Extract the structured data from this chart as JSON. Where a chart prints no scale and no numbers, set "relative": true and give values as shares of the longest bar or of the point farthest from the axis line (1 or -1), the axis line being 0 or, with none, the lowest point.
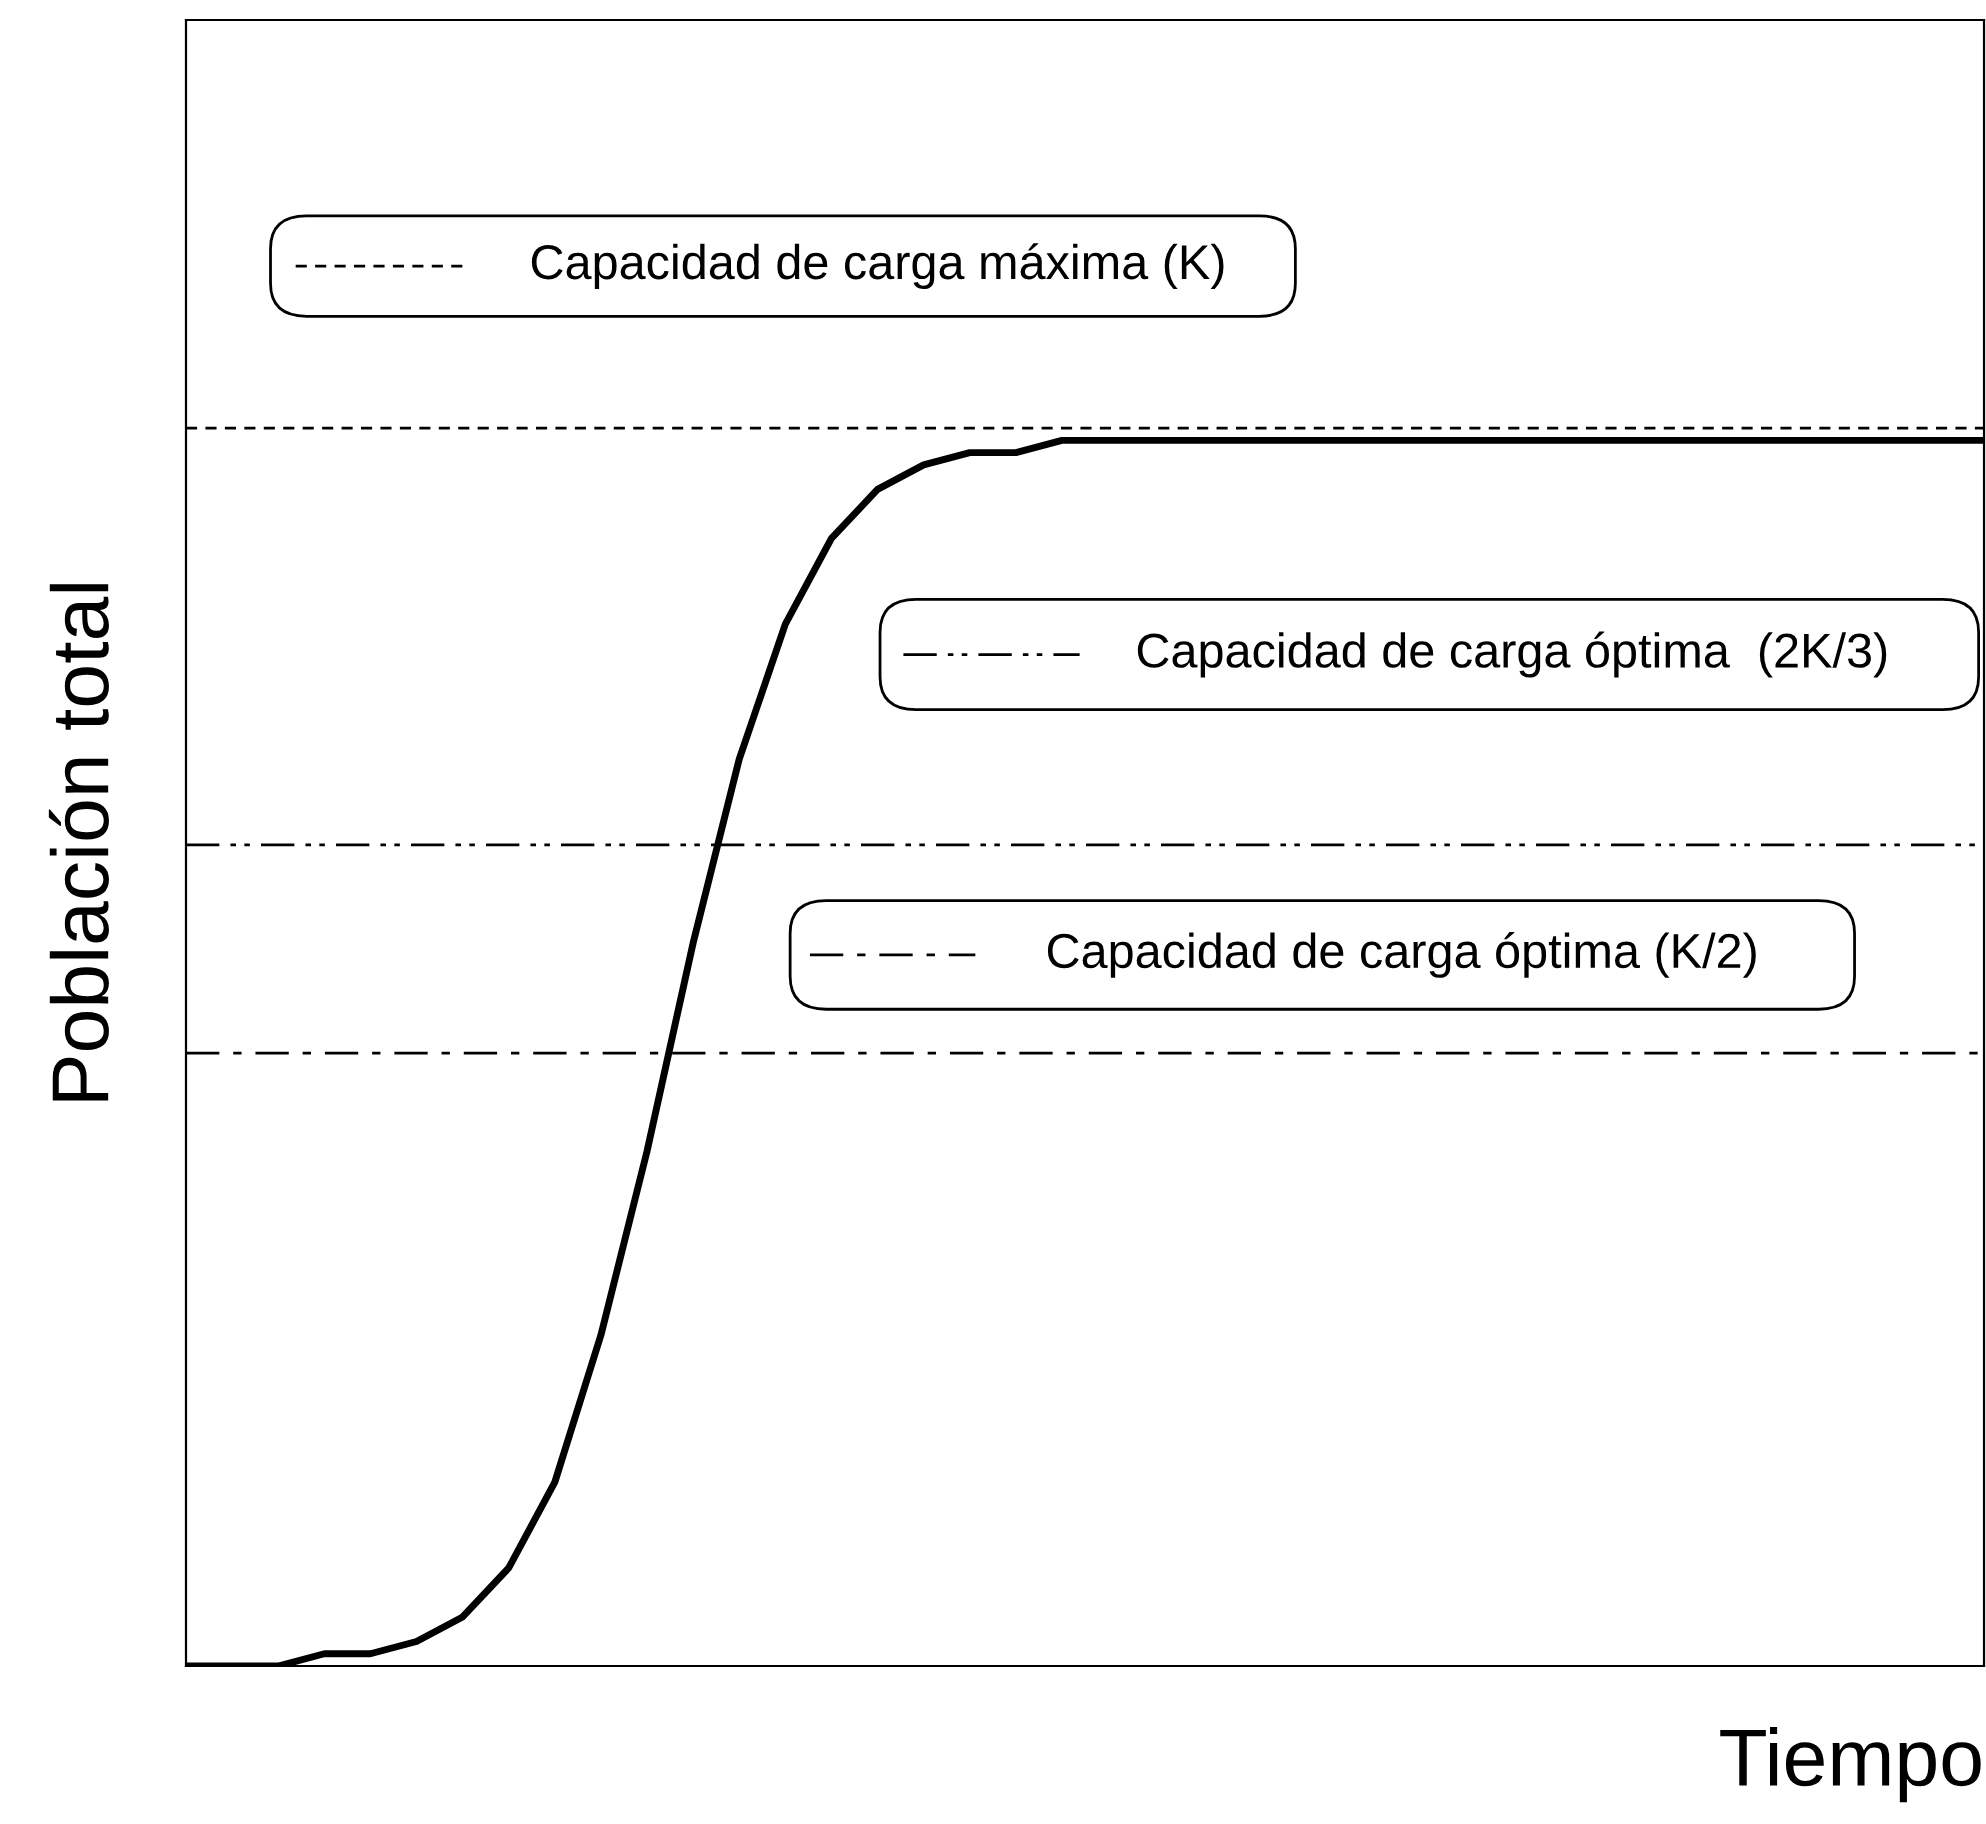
{
  "chart_data": {
    "type": "line",
    "relative": true,
    "xlabel": "Tiempo",
    "ylabel": "Población total",
    "legend": "top",
    "categories": [
      null,
      null,
      null,
      null,
      null,
      null,
      null,
      null,
      null,
      null,
      null,
      null,
      null,
      null,
      null,
      null,
      null,
      null,
      null,
      null,
      null,
      null,
      null,
      null,
      null,
      null,
      null,
      null,
      null,
      null,
      null,
      null,
      null,
      null,
      null,
      null,
      null,
      null,
      null,
      null
    ],
    "series": [
      {
        "color": "#000000",
        "line_style": "solid",
        "values": [
          0.0,
          0.0,
          0.0,
          0.01,
          0.01,
          0.02,
          0.04,
          0.08,
          0.15,
          0.27,
          0.42,
          0.59,
          0.74,
          0.85,
          0.92,
          0.96,
          0.98,
          0.99,
          0.99,
          1.0,
          1.0,
          1.0,
          1.0,
          1.0,
          1.0,
          1.0,
          1.0,
          1.0,
          1.0,
          1.0,
          1.0,
          1.0,
          1.0,
          1.0,
          1.0,
          1.0,
          1.0,
          1.0,
          1.0,
          1.0
        ]
      }
    ],
    "ref_lines": [
      {
        "axis": "y",
        "value": 1.01,
        "label": "Capacidad de carga máxima (K)",
        "color": "#000000",
        "line_style": "dashed"
      },
      {
        "axis": "y",
        "value": 0.67,
        "label": "Capacidad de carga óptima  (2K/3)",
        "color": "#000000",
        "line_style": "dashdotdot"
      },
      {
        "axis": "y",
        "value": 0.5,
        "label": "Capacidad de carga óptima (K/2)",
        "color": "#000000",
        "line_style": "dashdot"
      }
    ]
  }
}
